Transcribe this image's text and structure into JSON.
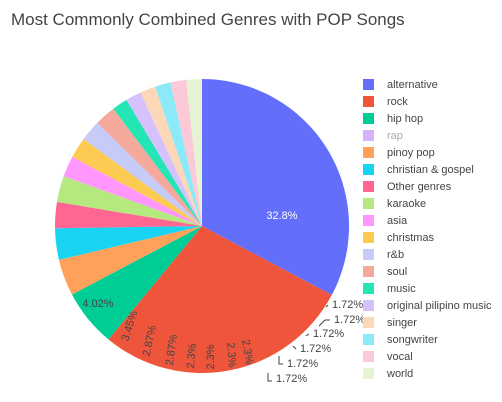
{
  "title": "Most Commonly Combined Genres with POP Songs",
  "chart_data": {
    "type": "pie",
    "title": "Most Commonly Combined Genres with POP Songs",
    "legend_position": "right",
    "slices": [
      {
        "label": "alternative",
        "percent": 32.8,
        "value_label": "32.8%",
        "color": "#636efa",
        "visible": true
      },
      {
        "label": "rock",
        "percent": 28.2,
        "value_label": "28.2%",
        "color": "#ef553b",
        "visible": true
      },
      {
        "label": "hip hop",
        "percent": 6.32,
        "value_label": "6.32%",
        "color": "#00cc96",
        "visible": true
      },
      {
        "label": "rap",
        "percent": 0,
        "value_label": "",
        "color": "#ab63fa",
        "visible": false
      },
      {
        "label": "pinoy pop",
        "percent": 4.02,
        "value_label": "4.02%",
        "color": "#ffa15a",
        "visible": true
      },
      {
        "label": "christian & gospel",
        "percent": 3.45,
        "value_label": "3.45%",
        "color": "#19d3f3",
        "visible": true
      },
      {
        "label": "Other genres",
        "percent": 2.87,
        "value_label": "2.87%",
        "color": "#ff6692",
        "visible": true
      },
      {
        "label": "karaoke",
        "percent": 2.87,
        "value_label": "2.87%",
        "color": "#b6e880",
        "visible": true
      },
      {
        "label": "asia",
        "percent": 2.3,
        "value_label": "2.3%",
        "color": "#ff97ff",
        "visible": true
      },
      {
        "label": "christmas",
        "percent": 2.3,
        "value_label": "2.3%",
        "color": "#fecb52",
        "visible": true
      },
      {
        "label": "r&b",
        "percent": 2.3,
        "value_label": "2.3%",
        "color": "#c6cbf7",
        "visible": true
      },
      {
        "label": "soul",
        "percent": 2.3,
        "value_label": "2.3%",
        "color": "#f4a99c",
        "visible": true
      },
      {
        "label": "music",
        "percent": 1.72,
        "value_label": "1.72%",
        "color": "#23e6b4",
        "visible": true
      },
      {
        "label": "original pilipino music",
        "percent": 1.72,
        "value_label": "1.72%",
        "color": "#d5c1fc",
        "visible": true
      },
      {
        "label": "singer",
        "percent": 1.72,
        "value_label": "1.72%",
        "color": "#fcd7b8",
        "visible": true
      },
      {
        "label": "songwriter",
        "percent": 1.72,
        "value_label": "1.72%",
        "color": "#8ce9f8",
        "visible": true
      },
      {
        "label": "vocal",
        "percent": 1.72,
        "value_label": "1.72%",
        "color": "#fcc9d8",
        "visible": true
      },
      {
        "label": "world",
        "percent": 1.72,
        "value_label": "1.72%",
        "color": "#e6f4d3",
        "visible": true
      }
    ]
  }
}
